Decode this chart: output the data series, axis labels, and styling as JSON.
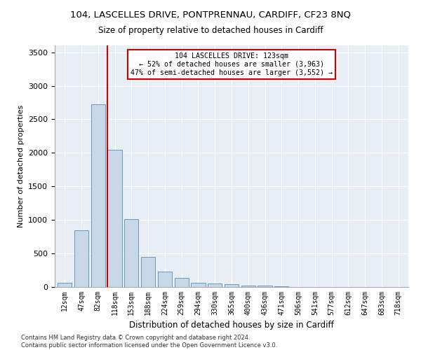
{
  "title": "104, LASCELLES DRIVE, PONTPRENNAU, CARDIFF, CF23 8NQ",
  "subtitle": "Size of property relative to detached houses in Cardiff",
  "xlabel": "Distribution of detached houses by size in Cardiff",
  "ylabel": "Number of detached properties",
  "bar_color": "#c8d8e8",
  "bar_edge_color": "#6699bb",
  "categories": [
    "12sqm",
    "47sqm",
    "82sqm",
    "118sqm",
    "153sqm",
    "188sqm",
    "224sqm",
    "259sqm",
    "294sqm",
    "330sqm",
    "365sqm",
    "400sqm",
    "436sqm",
    "471sqm",
    "506sqm",
    "541sqm",
    "577sqm",
    "612sqm",
    "647sqm",
    "683sqm",
    "718sqm"
  ],
  "values": [
    62,
    850,
    2720,
    2050,
    1010,
    450,
    230,
    140,
    65,
    50,
    42,
    26,
    20,
    8,
    4,
    0,
    0,
    0,
    0,
    0,
    0
  ],
  "vline_index": 3,
  "vline_color": "#cc0000",
  "annotation_line1": "104 LASCELLES DRIVE: 123sqm",
  "annotation_line2": "← 52% of detached houses are smaller (3,963)",
  "annotation_line3": "47% of semi-detached houses are larger (3,552) →",
  "annotation_box_color": "#ffffff",
  "annotation_box_edge": "#cc0000",
  "ylim": [
    0,
    3600
  ],
  "yticks": [
    0,
    500,
    1000,
    1500,
    2000,
    2500,
    3000,
    3500
  ],
  "background_color": "#e8eef5",
  "footer": "Contains HM Land Registry data © Crown copyright and database right 2024.\nContains public sector information licensed under the Open Government Licence v3.0."
}
